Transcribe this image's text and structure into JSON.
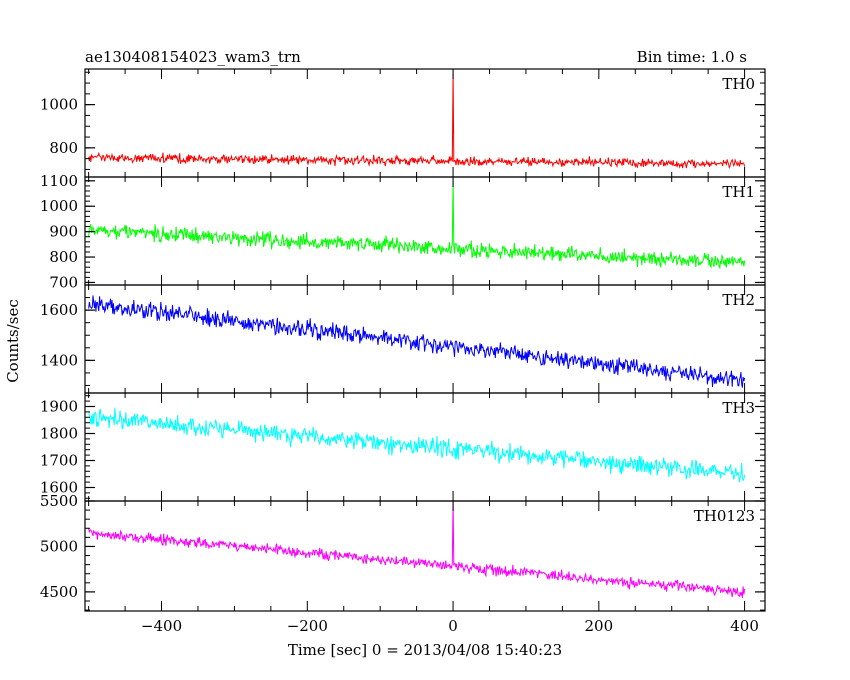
{
  "chart_data": {
    "type": "line",
    "title": "ae130408154023_wam3_trn",
    "subtitle": "Bin time: 1.0 s",
    "xlabel": "Time [sec] 0 = 2013/04/08 15:40:23",
    "ylabel": "Counts/sec",
    "xlim": [
      -505,
      428
    ],
    "x_ticks": [
      -400,
      -200,
      0,
      200,
      400
    ],
    "x_minor_step": 50,
    "x_range": [
      -500,
      400
    ],
    "bin_time": 1.0,
    "panels": [
      {
        "name": "TH0",
        "color": "#ff0000",
        "ylim": [
          665,
          1165
        ],
        "y_ticks": [
          800,
          1000
        ],
        "y_tick_labels": [
          "800",
          "1000"
        ],
        "y_minor_step": 50,
        "trend_start": 755,
        "trend_end": 725,
        "noise": 30,
        "spike": {
          "x": 0,
          "y": 1160
        }
      },
      {
        "name": "TH1",
        "color": "#00ff00",
        "ylim": [
          690,
          1115
        ],
        "y_ticks": [
          700,
          800,
          900,
          1000,
          1100
        ],
        "y_tick_labels": [
          "700",
          "800",
          "900",
          "1000",
          "1100"
        ],
        "y_minor_step": 20,
        "trend_start": 905,
        "trend_end": 775,
        "noise": 45,
        "spike": {
          "x": 0,
          "y": 1110
        }
      },
      {
        "name": "TH2",
        "color": "#0000ff",
        "ylim": [
          1270,
          1700
        ],
        "y_ticks": [
          1400,
          1600
        ],
        "y_tick_labels": [
          "1400",
          "1600"
        ],
        "y_minor_step": 50,
        "trend_start": 1625,
        "trend_end": 1320,
        "noise": 50,
        "spike": null
      },
      {
        "name": "TH3",
        "color": "#00ffff",
        "ylim": [
          1550,
          1950
        ],
        "y_ticks": [
          1600,
          1700,
          1800,
          1900
        ],
        "y_tick_labels": [
          "1600",
          "1700",
          "1800",
          "1900"
        ],
        "y_minor_step": 20,
        "trend_start": 1860,
        "trend_end": 1650,
        "noise": 50,
        "spike": null
      },
      {
        "name": "TH0123",
        "color": "#ff00ff",
        "ylim": [
          4290,
          5500
        ],
        "y_ticks": [
          4500,
          5000,
          5500
        ],
        "y_tick_labels": [
          "4500",
          "5000",
          "5500"
        ],
        "y_minor_step": 100,
        "trend_start": 5150,
        "trend_end": 4490,
        "noise": 85,
        "spike": {
          "x": 0,
          "y": 5500
        }
      }
    ]
  }
}
